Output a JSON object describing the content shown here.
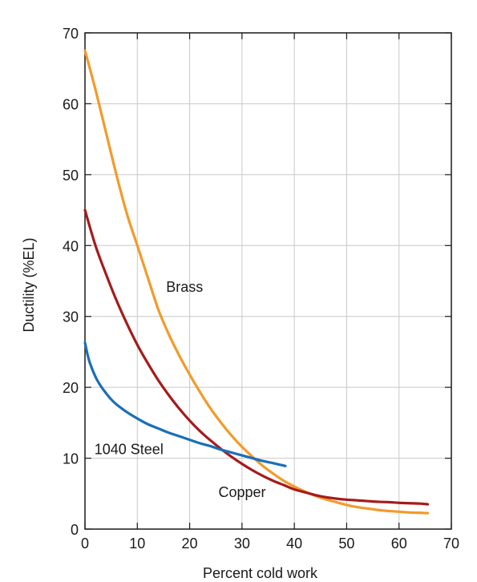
{
  "chart_data": {
    "type": "line",
    "xlabel": "Percent cold work",
    "ylabel": "Ductility (%EL)",
    "xlim": [
      0,
      70
    ],
    "ylim": [
      0,
      70
    ],
    "xticks": [
      0,
      10,
      20,
      30,
      40,
      50,
      60,
      70
    ],
    "yticks": [
      0,
      10,
      20,
      30,
      40,
      50,
      60,
      70
    ],
    "grid": true,
    "series": [
      {
        "name": "Brass",
        "color": "#f39a2b",
        "label_at": [
          15.5,
          33.5
        ],
        "x": [
          0,
          2,
          4,
          6,
          8,
          10,
          12,
          14,
          16,
          18,
          20,
          22,
          24,
          26,
          28,
          30,
          32,
          34,
          36,
          38,
          40,
          42,
          44,
          46,
          48,
          50,
          52,
          54,
          56,
          58,
          60,
          62,
          64,
          65.5
        ],
        "y": [
          67.5,
          62,
          56,
          50,
          44.5,
          40,
          35.5,
          31,
          27.5,
          24.5,
          21.8,
          19.3,
          17,
          15,
          13.2,
          11.6,
          10.2,
          8.9,
          7.8,
          6.8,
          6,
          5.3,
          4.7,
          4.2,
          3.8,
          3.4,
          3.1,
          2.9,
          2.7,
          2.55,
          2.45,
          2.35,
          2.3,
          2.25
        ]
      },
      {
        "name": "Copper",
        "color": "#a61b1b",
        "label_at": [
          25.5,
          4.5
        ],
        "x": [
          0,
          2,
          4,
          6,
          8,
          10,
          12,
          14,
          16,
          18,
          20,
          22,
          24,
          26,
          28,
          30,
          32,
          34,
          36,
          38,
          40,
          42,
          44,
          46,
          48,
          50,
          52,
          54,
          56,
          58,
          60,
          62,
          64,
          65.5
        ],
        "y": [
          45,
          40,
          36,
          32.3,
          29,
          26,
          23.4,
          21,
          18.9,
          17,
          15.3,
          13.8,
          12.5,
          11.3,
          10.2,
          9.2,
          8.3,
          7.5,
          6.8,
          6.2,
          5.6,
          5.2,
          4.8,
          4.5,
          4.3,
          4.15,
          4.05,
          3.95,
          3.85,
          3.8,
          3.7,
          3.65,
          3.6,
          3.5
        ]
      },
      {
        "name": "1040 Steel",
        "color": "#1a6fb8",
        "label_at": [
          1.8,
          10.6
        ],
        "x": [
          0,
          0.5,
          1,
          2,
          3,
          4,
          5,
          6,
          8,
          10,
          12,
          14,
          16,
          18,
          20,
          22,
          24,
          26,
          28,
          30,
          32,
          34,
          36,
          38.3
        ],
        "y": [
          26.3,
          24.6,
          23.3,
          21.5,
          20.2,
          19.2,
          18.3,
          17.6,
          16.5,
          15.6,
          14.8,
          14.2,
          13.6,
          13.1,
          12.6,
          12.1,
          11.7,
          11.2,
          10.8,
          10.4,
          10,
          9.6,
          9.3,
          8.9
        ]
      }
    ]
  }
}
